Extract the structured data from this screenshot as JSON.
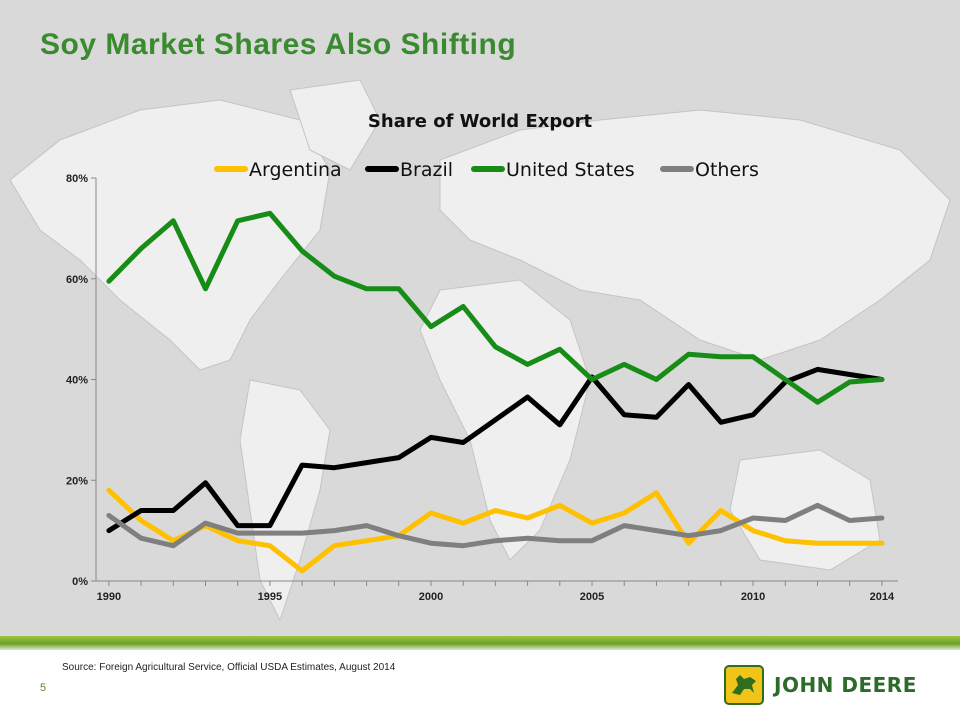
{
  "slide": {
    "title": "Soy Market Shares Also Shifting",
    "source": "Source: Foreign Agricultural Service, Official USDA Estimates, August 2014",
    "page_number": "5",
    "logo_text": "John Deere"
  },
  "colors": {
    "title_green": "#3a8a30",
    "band_green": "#6aa12a",
    "logo_yellow": "#f0c419",
    "logo_green": "#2d6b2a",
    "background_map": "#d9d9d9"
  },
  "chart_data": {
    "type": "line",
    "title": "Share of World Export",
    "xlabel": "",
    "ylabel": "",
    "legend_position": "top",
    "grid": false,
    "x": [
      1990,
      1991,
      1992,
      1993,
      1994,
      1995,
      1996,
      1997,
      1998,
      1999,
      2000,
      2001,
      2002,
      2003,
      2004,
      2005,
      2006,
      2007,
      2008,
      2009,
      2010,
      2011,
      2012,
      2013,
      2014
    ],
    "x_tick_labels": [
      "1990",
      "1995",
      "2000",
      "2005",
      "2010",
      "2014"
    ],
    "x_tick_values": [
      1990,
      1995,
      2000,
      2005,
      2010,
      2014
    ],
    "xlim": [
      1989.6,
      2014.5
    ],
    "ylim": [
      0,
      80
    ],
    "y_ticks": [
      0,
      20,
      40,
      60,
      80
    ],
    "y_tick_labels": [
      "0%",
      "20%",
      "40%",
      "60%",
      "80%"
    ],
    "series": [
      {
        "name": "Argentina",
        "color": "#ffc000",
        "values": [
          18,
          12,
          8,
          11,
          8,
          7,
          2,
          7,
          8,
          9,
          13.5,
          11.5,
          14,
          12.5,
          15,
          11.5,
          13.5,
          17.5,
          7.5,
          14,
          10,
          8,
          7.5,
          7.5,
          7.5
        ]
      },
      {
        "name": "Brazil",
        "color": "#000000",
        "values": [
          10,
          14,
          14,
          19.5,
          11,
          11,
          23,
          22.5,
          23.5,
          24.5,
          28.5,
          27.5,
          32,
          36.5,
          31,
          40.5,
          33,
          32.5,
          39,
          31.5,
          33,
          39.5,
          42,
          41,
          40
        ]
      },
      {
        "name": "United States",
        "color": "#178c17",
        "values": [
          59.5,
          66,
          71.5,
          58,
          71.5,
          73,
          65.5,
          60.5,
          58,
          58,
          50.5,
          54.5,
          46.5,
          43,
          46,
          40,
          43,
          40,
          45,
          44.5,
          44.5,
          40,
          35.5,
          39.5,
          40
        ]
      },
      {
        "name": "Others",
        "color": "#7f7f7f",
        "values": [
          13,
          8.5,
          7,
          11.5,
          9.5,
          9.5,
          9.5,
          10,
          11,
          9,
          7.5,
          7,
          8,
          8.5,
          8,
          8,
          11,
          10,
          9,
          10,
          12.5,
          12,
          15,
          12,
          12.5
        ]
      }
    ]
  }
}
